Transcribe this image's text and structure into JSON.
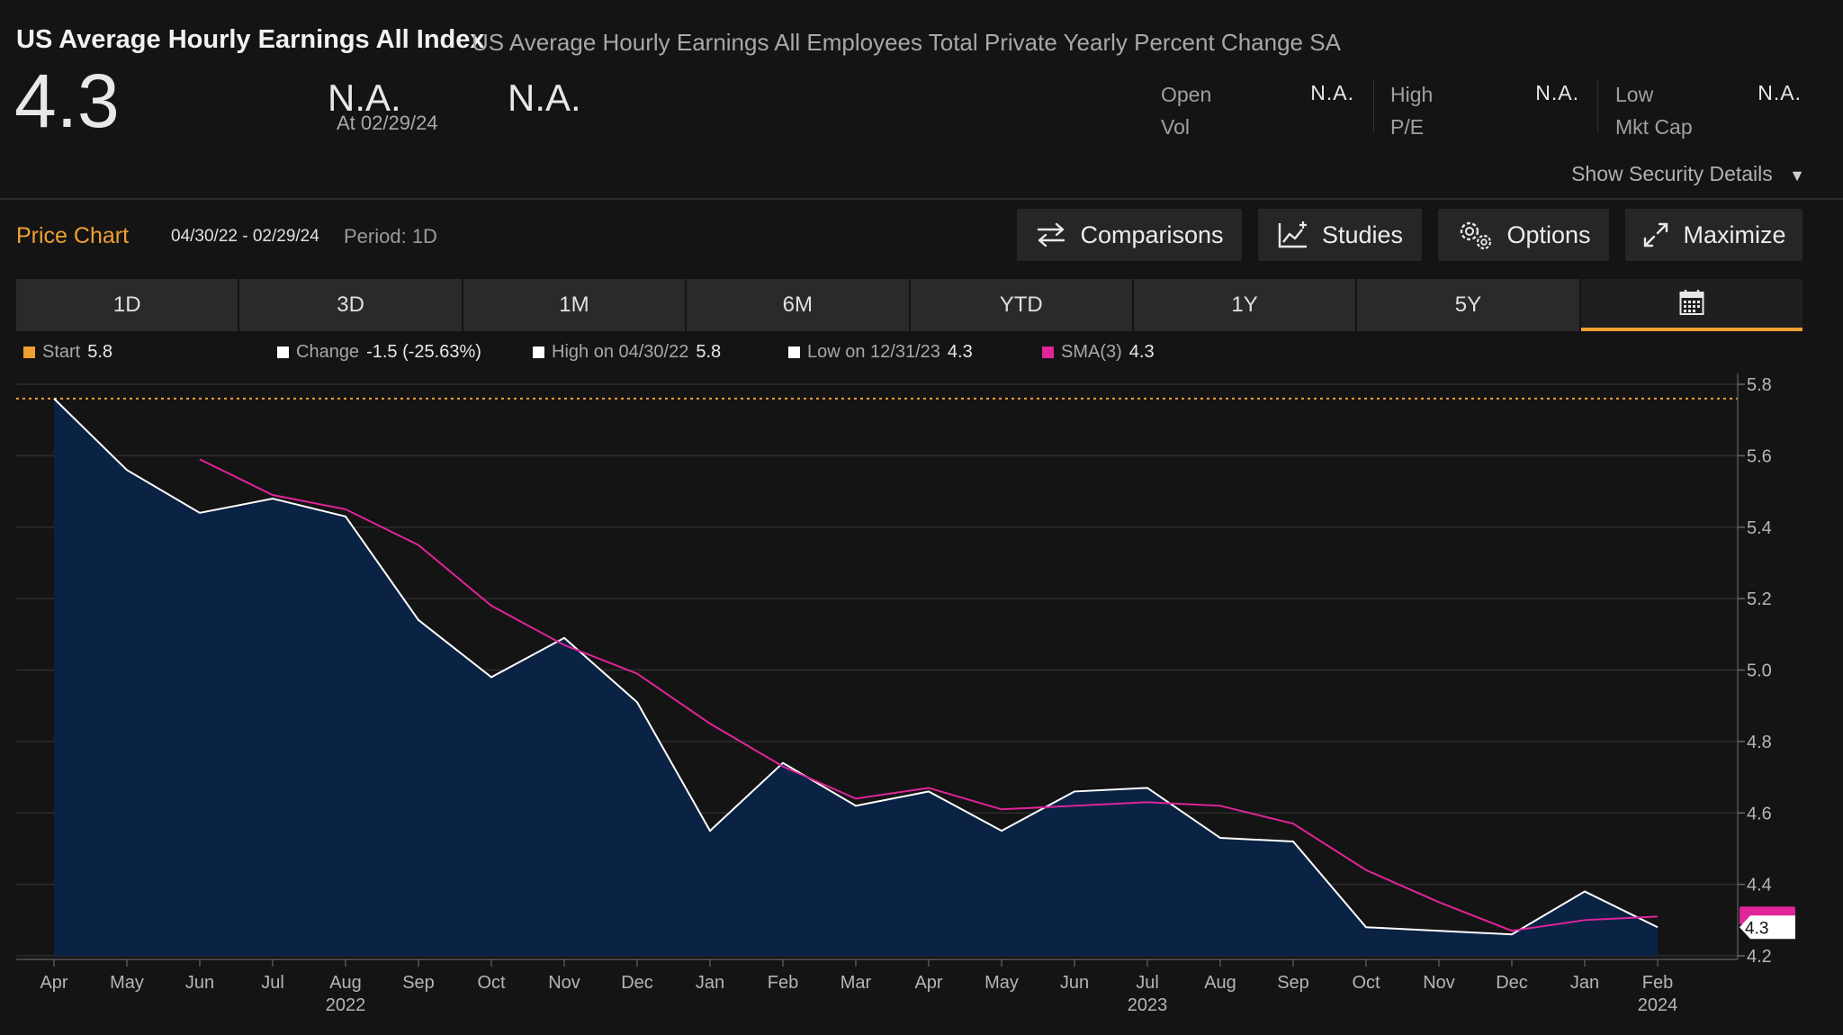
{
  "header": {
    "title": "US Average Hourly Earnings All Index",
    "subtitle": "US Average Hourly Earnings All Employees Total Private Yearly Percent Change SA",
    "last_price": "4.3",
    "change": "N.A.",
    "as_of": "At 02/29/24",
    "change_pct": "N.A.",
    "stats": {
      "open_label": "Open",
      "open_value": "N.A.",
      "high_label": "High",
      "high_value": "N.A.",
      "low_label": "Low",
      "low_value": "N.A.",
      "vol_label": "Vol",
      "pe_label": "P/E",
      "mktcap_label": "Mkt Cap"
    },
    "show_details": "Show Security Details",
    "show_details_icon": "triangle-down-icon"
  },
  "toolbar": {
    "title": "Price Chart",
    "date_range": "04/30/22 - 02/29/24",
    "period": "Period: 1D",
    "buttons": [
      {
        "label": "Comparisons",
        "icon": "swap-arrows-icon"
      },
      {
        "label": "Studies",
        "icon": "chart-plus-icon"
      },
      {
        "label": "Options",
        "icon": "gears-icon"
      },
      {
        "label": "Maximize",
        "icon": "expand-icon"
      }
    ]
  },
  "range_tabs": [
    "1D",
    "3D",
    "1M",
    "6M",
    "YTD",
    "1Y",
    "5Y"
  ],
  "calendar_icon": "calendar-icon",
  "legend": {
    "start_label": "Start",
    "start_value": "5.8",
    "change_label": "Change",
    "change_value": "-1.5 (-25.63%)",
    "high_label": "High on 04/30/22",
    "high_value": "5.8",
    "low_label": "Low on 12/31/23",
    "low_value": "4.3",
    "sma_label": "SMA(3)",
    "sma_value": "4.3"
  },
  "colors": {
    "accent": "#f0a033",
    "area_fill": "#0a2244",
    "price_line": "#ffffff",
    "sma_line": "#e0249a",
    "background": "#141414"
  },
  "chart_data": {
    "type": "area",
    "x": [
      "2022-04",
      "2022-05",
      "2022-06",
      "2022-07",
      "2022-08",
      "2022-09",
      "2022-10",
      "2022-11",
      "2022-12",
      "2023-01",
      "2023-02",
      "2023-03",
      "2023-04",
      "2023-05",
      "2023-06",
      "2023-07",
      "2023-08",
      "2023-09",
      "2023-10",
      "2023-11",
      "2023-12",
      "2024-01",
      "2024-02"
    ],
    "month_labels": [
      "Apr",
      "May",
      "Jun",
      "Jul",
      "Aug",
      "Sep",
      "Oct",
      "Nov",
      "Dec",
      "Jan",
      "Feb",
      "Mar",
      "Apr",
      "May",
      "Jun",
      "Jul",
      "Aug",
      "Sep",
      "Oct",
      "Nov",
      "Dec",
      "Jan",
      "Feb"
    ],
    "year_labels": [
      {
        "label": "2022",
        "index": 4
      },
      {
        "label": "2023",
        "index": 15
      },
      {
        "label": "2024",
        "index": 22
      }
    ],
    "series": [
      {
        "name": "",
        "values": [
          5.76,
          5.56,
          5.44,
          5.48,
          5.43,
          5.14,
          4.98,
          5.09,
          4.91,
          4.55,
          4.74,
          4.62,
          4.66,
          4.55,
          4.66,
          4.67,
          4.53,
          4.52,
          4.28,
          4.27,
          4.26,
          4.38,
          4.28
        ]
      },
      {
        "name": "SMA(3)",
        "values": [
          null,
          null,
          5.59,
          5.49,
          5.45,
          5.35,
          5.18,
          5.07,
          4.99,
          4.85,
          4.73,
          4.64,
          4.67,
          4.61,
          4.62,
          4.63,
          4.62,
          4.57,
          4.44,
          4.35,
          4.27,
          4.3,
          4.31
        ]
      }
    ],
    "ylim": [
      4.2,
      5.8
    ],
    "yticks": [
      "5.8",
      "5.6",
      "5.4",
      "5.2",
      "5.0",
      "4.8",
      "4.6",
      "4.4",
      "4.2"
    ],
    "reference_line": 5.76,
    "last_value_label": "4.3",
    "grid": true
  }
}
